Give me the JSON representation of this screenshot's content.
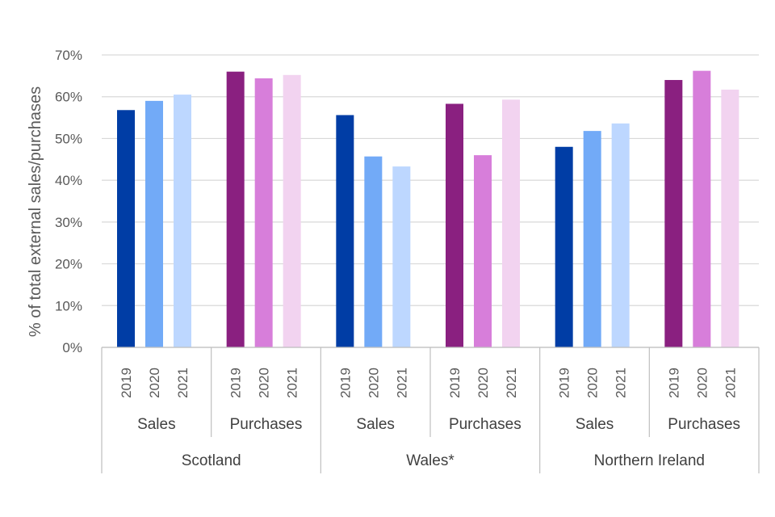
{
  "chart_data": {
    "type": "bar",
    "title": "",
    "ylabel": "% of total external sales/purchases",
    "xlabel": "",
    "ylim": [
      0,
      70
    ],
    "yticks": [
      0,
      10,
      20,
      30,
      40,
      50,
      60,
      70
    ],
    "ytick_labels": [
      "0%",
      "10%",
      "20%",
      "30%",
      "40%",
      "50%",
      "60%",
      "70%"
    ],
    "grid": true,
    "years": [
      "2019",
      "2020",
      "2021"
    ],
    "colors": {
      "Sales": [
        "#003DA5",
        "#72AAF7",
        "#BDD7FF"
      ],
      "Purchases": [
        "#8A2080",
        "#D77EDA",
        "#F2D3F0"
      ]
    },
    "regions": [
      {
        "name": "Scotland",
        "groups": [
          {
            "name": "Sales",
            "values": [
              56.8,
              59.0,
              60.5
            ]
          },
          {
            "name": "Purchases",
            "values": [
              66.0,
              64.4,
              65.2
            ]
          }
        ]
      },
      {
        "name": "Wales*",
        "groups": [
          {
            "name": "Sales",
            "values": [
              55.6,
              45.7,
              43.3
            ]
          },
          {
            "name": "Purchases",
            "values": [
              58.3,
              46.0,
              59.3
            ]
          }
        ]
      },
      {
        "name": "Northern Ireland",
        "groups": [
          {
            "name": "Sales",
            "values": [
              48.0,
              51.8,
              53.6
            ]
          },
          {
            "name": "Purchases",
            "values": [
              64.0,
              66.2,
              61.7
            ]
          }
        ]
      }
    ]
  }
}
